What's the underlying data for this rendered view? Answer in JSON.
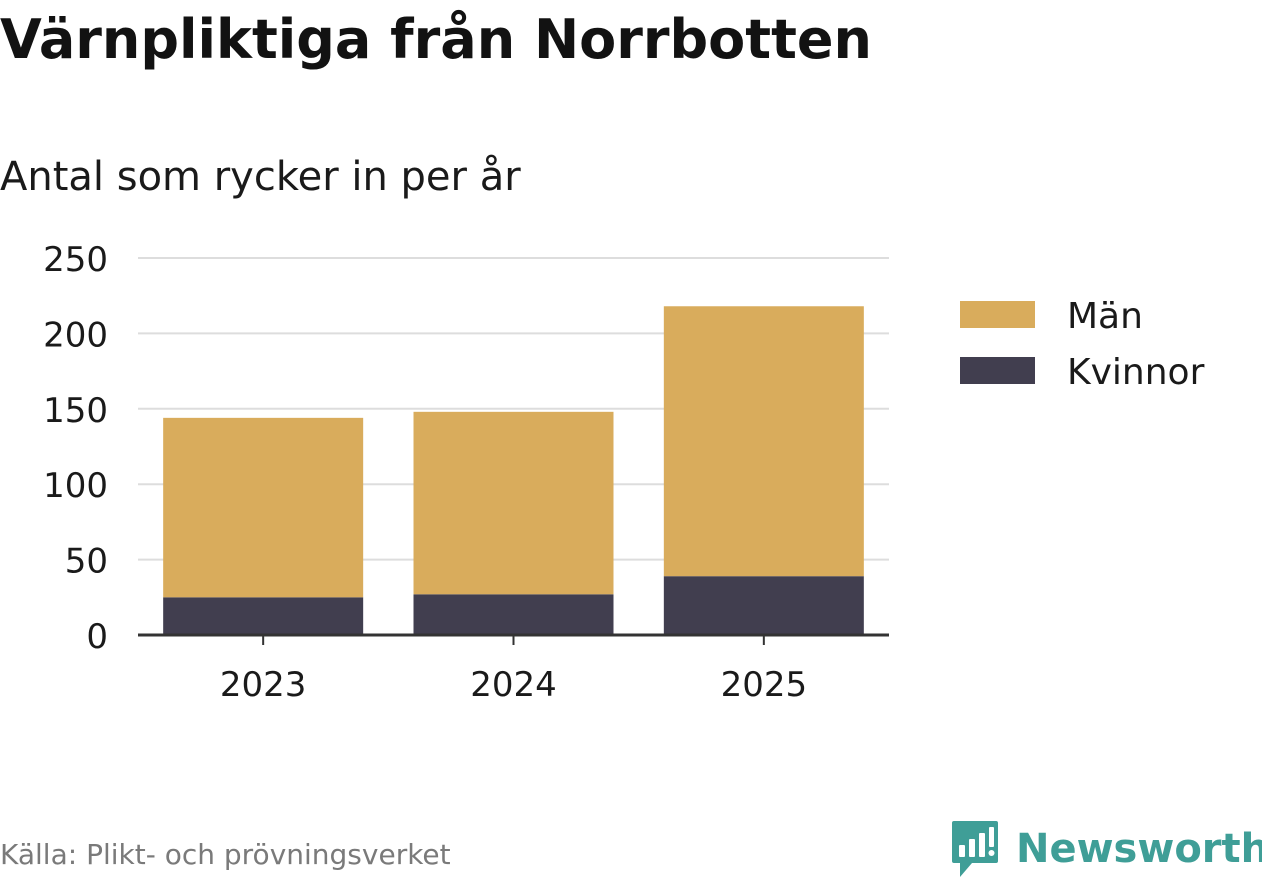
{
  "header": {
    "title": "Värnpliktiga från Norrbotten",
    "subtitle": "Antal som rycker in per år"
  },
  "chart_data": {
    "type": "bar",
    "stacked": true,
    "categories": [
      "2023",
      "2024",
      "2025"
    ],
    "series": [
      {
        "name": "Kvinnor",
        "values": [
          25,
          27,
          39
        ],
        "color": "#413e4f"
      },
      {
        "name": "Män",
        "values": [
          119,
          121,
          179
        ],
        "color": "#d9ac5c"
      }
    ],
    "legend_order": [
      "Män",
      "Kvinnor"
    ],
    "ylim": [
      0,
      250
    ],
    "yticks": [
      0,
      50,
      100,
      150,
      200,
      250
    ],
    "ytick_labels": [
      "0",
      "50",
      "100",
      "150",
      "200",
      "250"
    ],
    "grid": true,
    "legend_position": "right",
    "xlabel": "",
    "ylabel": ""
  },
  "footer": {
    "source": "Källa: Plikt- och prövningsverket",
    "brand": "Newsworthy",
    "brand_icon": "newsworthy-logo-icon",
    "brand_color": "#3f9e97"
  },
  "colors": {
    "grid": "#dddddd",
    "axis": "#333333",
    "text": "#1a1a1a",
    "source_text": "#7a7a7a"
  }
}
